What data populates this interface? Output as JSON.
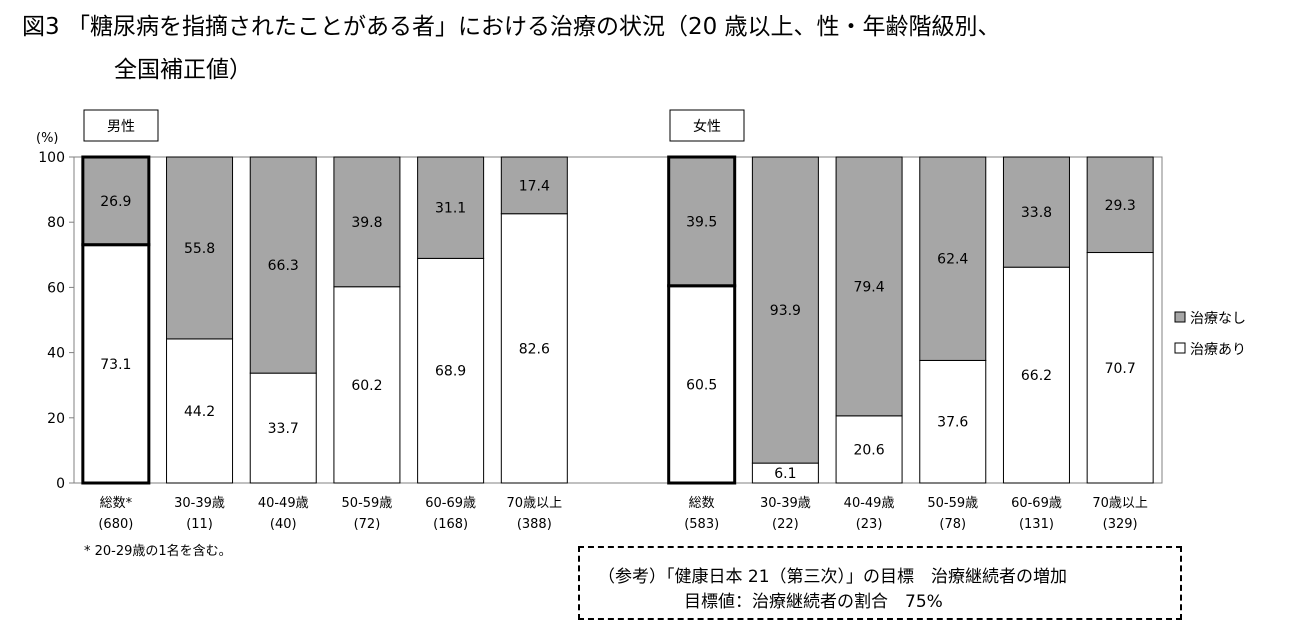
{
  "title_line1": "図3 「糖尿病を指摘されたことがある者」における治療の状況（20 歳以上、性・年齢階級別、",
  "title_line2": "全国補正値）",
  "chart_data": [
    {
      "type": "bar",
      "stacked": true,
      "panel_label": "男性",
      "ylabel": "(%)",
      "ylim": [
        0,
        100
      ],
      "yticks": [
        0,
        20,
        40,
        60,
        80,
        100
      ],
      "categories": [
        "総数*",
        "30-39歳",
        "40-49歳",
        "50-59歳",
        "60-69歳",
        "70歳以上"
      ],
      "counts": [
        "(680)",
        "(11)",
        "(40)",
        "(72)",
        "(168)",
        "(388)"
      ],
      "series": [
        {
          "name": "治療あり",
          "color": "#ffffff",
          "values": [
            73.1,
            44.2,
            33.7,
            60.2,
            68.9,
            82.6
          ]
        },
        {
          "name": "治療なし",
          "color": "#a6a6a6",
          "values": [
            26.9,
            55.8,
            66.3,
            39.8,
            31.1,
            17.4
          ]
        }
      ],
      "highlight_first": true
    },
    {
      "type": "bar",
      "stacked": true,
      "panel_label": "女性",
      "ylim": [
        0,
        100
      ],
      "categories": [
        "総数",
        "30-39歳",
        "40-49歳",
        "50-59歳",
        "60-69歳",
        "70歳以上"
      ],
      "counts": [
        "(583)",
        "(22)",
        "(23)",
        "(78)",
        "(131)",
        "(329)"
      ],
      "series": [
        {
          "name": "治療あり",
          "color": "#ffffff",
          "values": [
            60.5,
            6.1,
            20.6,
            37.6,
            66.2,
            70.7
          ]
        },
        {
          "name": "治療なし",
          "color": "#a6a6a6",
          "values": [
            39.5,
            93.9,
            79.4,
            62.4,
            33.8,
            29.3
          ]
        }
      ],
      "highlight_first": true
    }
  ],
  "legend": [
    {
      "label": "治療なし",
      "color": "#a6a6a6"
    },
    {
      "label": "治療あり",
      "color": "#ffffff"
    }
  ],
  "legend_position": "right",
  "footnote": "* 20-29歳の1名を含む。",
  "reference": {
    "line1": "（参考）「健康日本 21（第三次）」の目標　治療継続者の増加",
    "line2": "目標値：治療継続者の割合　75%"
  }
}
